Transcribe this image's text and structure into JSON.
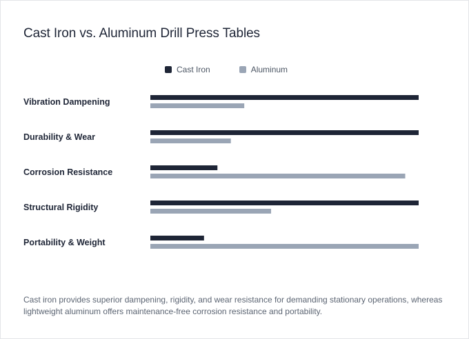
{
  "colors": {
    "cast_iron": "#1e2536",
    "aluminum": "#9aa5b5"
  },
  "chart_data": {
    "type": "bar",
    "orientation": "horizontal",
    "title": "Cast Iron vs. Aluminum Drill Press Tables",
    "categories": [
      "Vibration Dampening",
      "Durability & Wear",
      "Corrosion Resistance",
      "Structural Rigidity",
      "Portability & Weight"
    ],
    "series": [
      {
        "name": "Cast Iron",
        "values": [
          100,
          100,
          25,
          100,
          20
        ]
      },
      {
        "name": "Aluminum",
        "values": [
          35,
          30,
          95,
          45,
          100
        ]
      }
    ],
    "xlim": [
      0,
      100
    ],
    "grid": false,
    "legend_position": "top"
  },
  "caption": "Cast iron provides superior dampening, rigidity, and wear resistance for demanding stationary operations, whereas lightweight aluminum offers maintenance-free corrosion resistance and portability."
}
